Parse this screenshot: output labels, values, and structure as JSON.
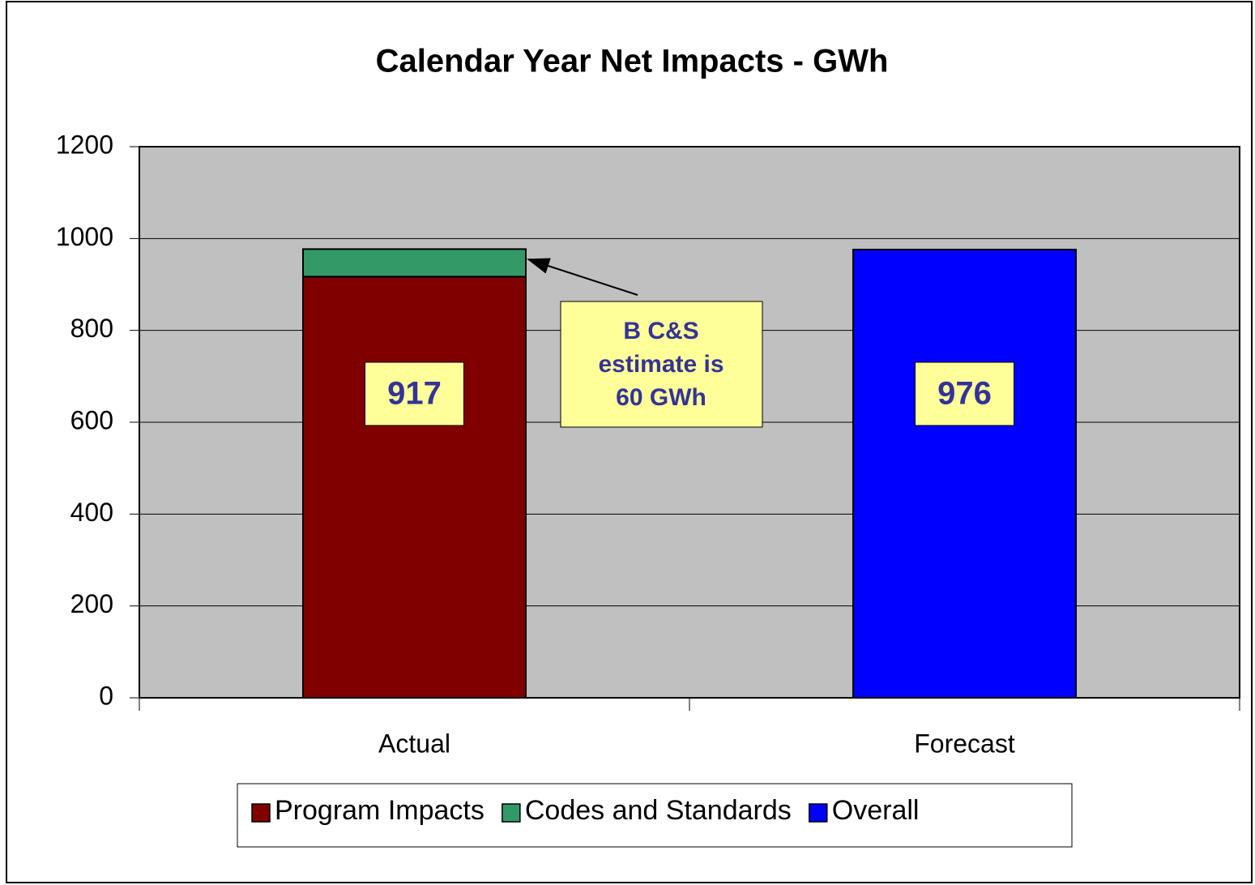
{
  "chart_data": {
    "type": "bar",
    "stacked": true,
    "title": "Calendar Year Net Impacts - GWh",
    "categories": [
      "Actual",
      "Forecast"
    ],
    "series": [
      {
        "name": "Program Impacts",
        "color": "#800000",
        "values": [
          917,
          null
        ],
        "labels": true
      },
      {
        "name": "Codes and Standards",
        "color": "#339966",
        "values": [
          60,
          null
        ],
        "labels": false
      },
      {
        "name": "Overall",
        "color": "#0000ff",
        "values": [
          null,
          976
        ],
        "labels": true
      }
    ],
    "ylim": [
      0,
      1200
    ],
    "yticks": [
      0,
      200,
      400,
      600,
      800,
      1000,
      1200
    ],
    "grid": true,
    "legend": "bottom",
    "annotation": [
      "B C&S",
      "estimate is",
      "60 GWh"
    ]
  }
}
